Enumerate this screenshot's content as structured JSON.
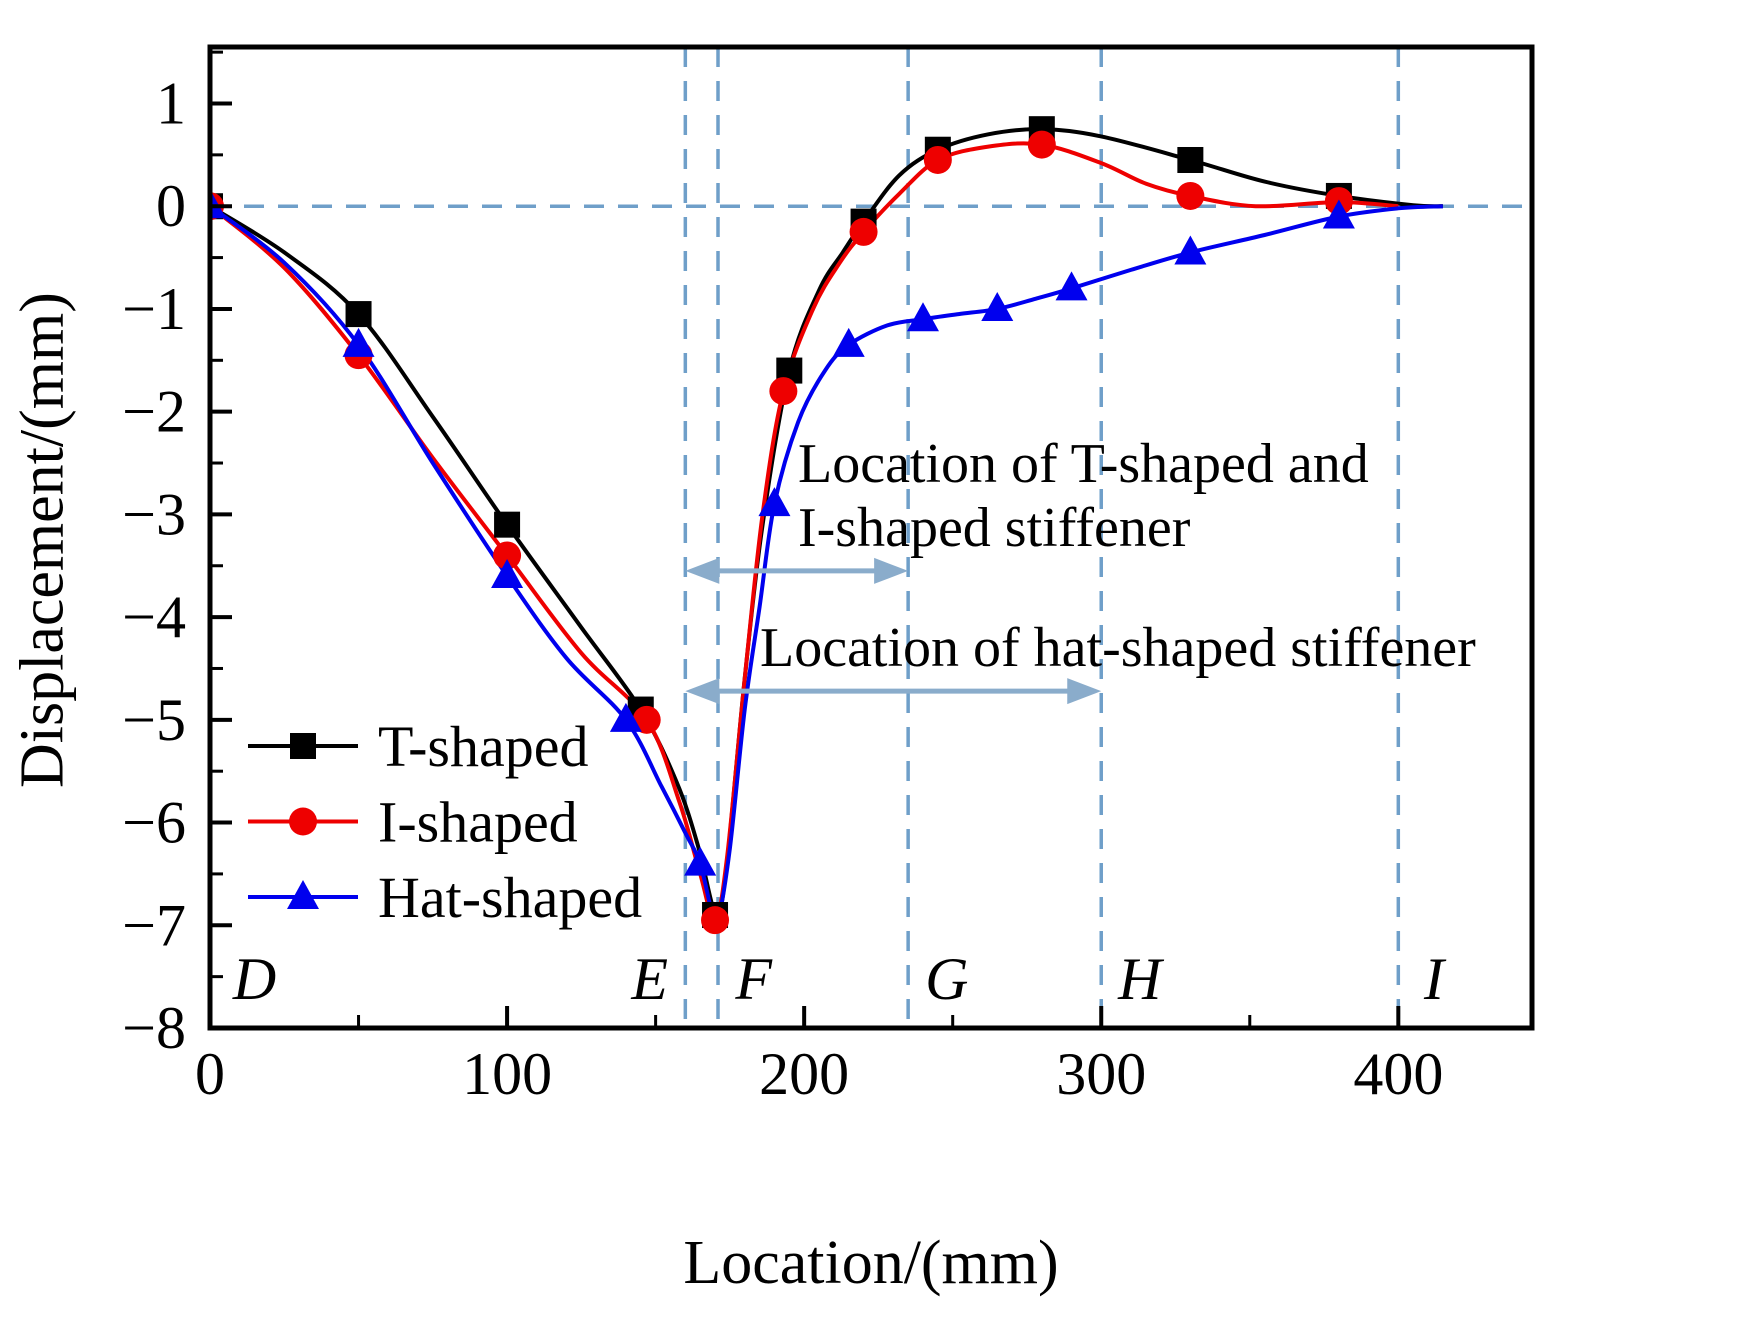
{
  "chart_data": {
    "type": "line",
    "title": "",
    "xlabel": "Location/(mm)",
    "ylabel": "Displacement/(mm)",
    "xlim": [
      0,
      445
    ],
    "ylim": [
      -8,
      1.55
    ],
    "x_ticks": [
      0,
      100,
      200,
      300,
      400
    ],
    "x_minor_ticks": [
      50,
      150,
      250,
      350
    ],
    "y_ticks": [
      1,
      0,
      -1,
      -2,
      -3,
      -4,
      -5,
      -6,
      -7,
      -8
    ],
    "y_minor_ticks": [
      1.5,
      0.5,
      -0.5,
      -1.5,
      -2.5,
      -3.5,
      -4.5,
      -5.5,
      -6.5,
      -7.5
    ],
    "grid": false,
    "legend_position": "lower-left",
    "dashed_line_color": "#6f9fc9",
    "arrow_color": "#8aaccb",
    "zero_line_y": 0,
    "vlines": [
      160,
      171,
      235,
      300,
      400
    ],
    "section_labels": [
      {
        "text": "D",
        "x": 15
      },
      {
        "text": "E",
        "x": 148
      },
      {
        "text": "F",
        "x": 183
      },
      {
        "text": "G",
        "x": 248
      },
      {
        "text": "H",
        "x": 313
      },
      {
        "text": "I",
        "x": 412
      }
    ],
    "series": [
      {
        "name": "T-shaped",
        "color": "#000000",
        "marker": "square",
        "points": [
          [
            0,
            0
          ],
          [
            50,
            -1.05
          ],
          [
            100,
            -3.1
          ],
          [
            145,
            -4.9
          ],
          [
            170,
            -6.9
          ],
          [
            195,
            -1.6
          ],
          [
            220,
            -0.15
          ],
          [
            245,
            0.55
          ],
          [
            280,
            0.75
          ],
          [
            330,
            0.45
          ],
          [
            380,
            0.1
          ]
        ],
        "curve": [
          [
            0,
            0
          ],
          [
            25,
            -0.45
          ],
          [
            50,
            -1.05
          ],
          [
            75,
            -2.05
          ],
          [
            100,
            -3.1
          ],
          [
            125,
            -4.1
          ],
          [
            145,
            -4.9
          ],
          [
            157,
            -5.6
          ],
          [
            164,
            -6.2
          ],
          [
            169,
            -6.8
          ],
          [
            171,
            -6.92
          ],
          [
            174,
            -6.4
          ],
          [
            180,
            -4.6
          ],
          [
            186,
            -3.1
          ],
          [
            195,
            -1.6
          ],
          [
            205,
            -0.82
          ],
          [
            213,
            -0.45
          ],
          [
            220,
            -0.15
          ],
          [
            232,
            0.3
          ],
          [
            245,
            0.55
          ],
          [
            262,
            0.7
          ],
          [
            280,
            0.75
          ],
          [
            300,
            0.68
          ],
          [
            330,
            0.45
          ],
          [
            355,
            0.24
          ],
          [
            380,
            0.1
          ],
          [
            405,
            0.01
          ],
          [
            415,
            0
          ]
        ]
      },
      {
        "name": "I-shaped",
        "color": "#ee0000",
        "marker": "circle",
        "points": [
          [
            0,
            0
          ],
          [
            50,
            -1.45
          ],
          [
            100,
            -3.4
          ],
          [
            147,
            -5.0
          ],
          [
            170,
            -6.95
          ],
          [
            193,
            -1.8
          ],
          [
            220,
            -0.25
          ],
          [
            245,
            0.45
          ],
          [
            280,
            0.6
          ],
          [
            330,
            0.1
          ],
          [
            380,
            0.05
          ]
        ],
        "curve": [
          [
            0,
            0
          ],
          [
            25,
            -0.6
          ],
          [
            50,
            -1.45
          ],
          [
            75,
            -2.45
          ],
          [
            100,
            -3.4
          ],
          [
            125,
            -4.35
          ],
          [
            147,
            -5.0
          ],
          [
            158,
            -5.8
          ],
          [
            165,
            -6.5
          ],
          [
            170,
            -6.95
          ],
          [
            174,
            -6.35
          ],
          [
            180,
            -4.6
          ],
          [
            186,
            -3.0
          ],
          [
            193,
            -1.8
          ],
          [
            203,
            -1.0
          ],
          [
            212,
            -0.55
          ],
          [
            220,
            -0.25
          ],
          [
            232,
            0.12
          ],
          [
            245,
            0.45
          ],
          [
            262,
            0.58
          ],
          [
            280,
            0.6
          ],
          [
            300,
            0.42
          ],
          [
            315,
            0.22
          ],
          [
            330,
            0.1
          ],
          [
            352,
            0.0
          ],
          [
            380,
            0.04
          ],
          [
            400,
            0.0
          ]
        ]
      },
      {
        "name": "Hat-shaped",
        "color": "#0000ee",
        "marker": "triangle",
        "points": [
          [
            0,
            0
          ],
          [
            50,
            -1.35
          ],
          [
            100,
            -3.6
          ],
          [
            140,
            -5.0
          ],
          [
            165,
            -6.4
          ],
          [
            190,
            -2.9
          ],
          [
            215,
            -1.35
          ],
          [
            240,
            -1.1
          ],
          [
            265,
            -1.0
          ],
          [
            290,
            -0.8
          ],
          [
            330,
            -0.45
          ],
          [
            380,
            -0.1
          ]
        ],
        "curve": [
          [
            0,
            0
          ],
          [
            25,
            -0.55
          ],
          [
            50,
            -1.35
          ],
          [
            75,
            -2.5
          ],
          [
            100,
            -3.6
          ],
          [
            120,
            -4.4
          ],
          [
            140,
            -5.0
          ],
          [
            152,
            -5.65
          ],
          [
            160,
            -6.1
          ],
          [
            165,
            -6.4
          ],
          [
            169,
            -6.88
          ],
          [
            171,
            -6.95
          ],
          [
            175,
            -6.25
          ],
          [
            180,
            -4.9
          ],
          [
            185,
            -3.9
          ],
          [
            190,
            -2.9
          ],
          [
            198,
            -2.1
          ],
          [
            207,
            -1.6
          ],
          [
            215,
            -1.35
          ],
          [
            228,
            -1.16
          ],
          [
            240,
            -1.1
          ],
          [
            252,
            -1.05
          ],
          [
            265,
            -1.0
          ],
          [
            278,
            -0.9
          ],
          [
            290,
            -0.8
          ],
          [
            310,
            -0.62
          ],
          [
            330,
            -0.45
          ],
          [
            355,
            -0.28
          ],
          [
            380,
            -0.1
          ],
          [
            400,
            -0.02
          ],
          [
            415,
            0.0
          ]
        ]
      }
    ],
    "legend": {
      "entries": [
        "T-shaped",
        "I-shaped",
        "Hat-shaped"
      ]
    },
    "annotations": [
      {
        "line1": "Location of T-shaped and",
        "line2": "I-shaped stiffener",
        "arrow_x1": 160,
        "arrow_x2": 235,
        "arrow_y": -3.55
      },
      {
        "line1": "Location of hat-shaped stiffener",
        "line2": "",
        "arrow_x1": 160,
        "arrow_x2": 300,
        "arrow_y": -4.72
      }
    ]
  }
}
